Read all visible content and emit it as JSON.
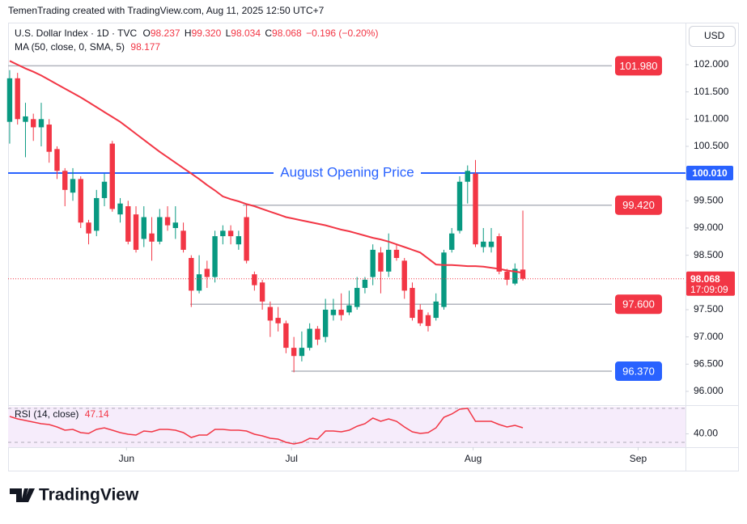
{
  "chart_data": {
    "type": "candlestick",
    "attribution": "TemenTrading created with TradingView.com, Aug 11, 2025 12:50 UTC+7",
    "symbol": "U.S. Dollar Index · 1D · TVC",
    "ohlc_header": [
      {
        "label": "O",
        "value": "98.237"
      },
      {
        "label": "H",
        "value": "99.320"
      },
      {
        "label": "L",
        "value": "98.034"
      },
      {
        "label": "C",
        "value": "98.068"
      }
    ],
    "change": "−0.196 (−0.20%)",
    "currency": "USD",
    "brand": "TradingView",
    "up_color": "#089981",
    "down_color": "#f23645",
    "categories": [
      null,
      null,
      null,
      null,
      null,
      null,
      null,
      null,
      null,
      null,
      null,
      null,
      null,
      null,
      null,
      null,
      null,
      null,
      null,
      null,
      null,
      null,
      null,
      null,
      null,
      null,
      null,
      null,
      null,
      null,
      null,
      null,
      null,
      null,
      null,
      null,
      null,
      null,
      null,
      null,
      null,
      null,
      null,
      null,
      null,
      null,
      null,
      null,
      null,
      null,
      null,
      null,
      null,
      null,
      null,
      null,
      null,
      null,
      null,
      null,
      null,
      null,
      null,
      null,
      null,
      null
    ],
    "open": [
      100.95,
      101.75,
      100.95,
      101.0,
      100.85,
      100.9,
      100.45,
      100.05,
      99.65,
      99.9,
      99.1,
      98.95,
      99.55,
      100.55,
      99.25,
      99.4,
      99.25,
      98.8,
      98.9,
      98.75,
      99.2,
      99.0,
      98.95,
      98.45,
      97.85,
      98.25,
      98.1,
      98.85,
      98.95,
      98.7,
      99.2,
      98.15,
      98.0,
      97.55,
      97.35,
      97.25,
      96.8,
      96.65,
      96.8,
      97.15,
      97.0,
      97.4,
      97.5,
      97.45,
      97.55,
      97.9,
      98.1,
      98.55,
      98.2,
      98.6,
      98.4,
      97.9,
      97.5,
      97.4,
      97.35,
      97.55,
      98.6,
      98.95,
      99.85,
      100.0,
      98.65,
      98.65,
      98.85,
      98.2,
      97.98,
      98.237
    ],
    "high": [
      101.9,
      101.85,
      101.3,
      101.1,
      101.3,
      101.0,
      100.5,
      100.1,
      100.1,
      99.95,
      99.15,
      99.7,
      100.0,
      100.6,
      99.55,
      99.5,
      99.4,
      99.4,
      99.2,
      99.35,
      99.4,
      99.4,
      99.1,
      98.5,
      98.5,
      98.4,
      98.95,
      99.05,
      99.05,
      98.95,
      99.45,
      98.2,
      98.05,
      97.65,
      97.55,
      97.3,
      97.0,
      97.1,
      97.25,
      97.2,
      97.7,
      97.7,
      97.8,
      97.85,
      98.1,
      98.1,
      98.7,
      98.65,
      98.9,
      98.7,
      98.45,
      98.0,
      97.6,
      97.45,
      97.8,
      98.6,
      99.0,
      99.95,
      100.15,
      100.25,
      99.0,
      99.0,
      98.9,
      98.25,
      98.35,
      99.32
    ],
    "low": [
      100.55,
      100.9,
      100.3,
      100.6,
      100.5,
      100.2,
      99.9,
      99.4,
      99.5,
      99.0,
      98.7,
      98.85,
      99.4,
      99.3,
      99.1,
      98.7,
      98.55,
      98.65,
      98.4,
      98.7,
      98.95,
      98.8,
      98.55,
      97.55,
      97.8,
      97.9,
      98.0,
      98.7,
      98.7,
      98.6,
      98.35,
      97.85,
      97.5,
      97.0,
      97.1,
      96.7,
      96.35,
      96.55,
      96.75,
      96.85,
      96.9,
      97.3,
      97.3,
      97.4,
      97.5,
      97.8,
      97.95,
      97.8,
      98.1,
      98.4,
      97.7,
      97.3,
      97.2,
      97.1,
      97.3,
      97.5,
      98.55,
      98.9,
      99.45,
      98.65,
      98.55,
      98.55,
      98.15,
      97.95,
      97.95,
      98.034
    ],
    "close": [
      101.75,
      101.0,
      101.05,
      100.85,
      101.0,
      100.4,
      100.05,
      99.7,
      99.9,
      99.1,
      98.9,
      99.55,
      99.85,
      99.35,
      99.45,
      98.75,
      98.6,
      99.2,
      98.75,
      99.2,
      99.05,
      99.1,
      98.6,
      97.85,
      98.15,
      98.1,
      98.85,
      98.95,
      98.85,
      98.85,
      98.4,
      97.95,
      97.65,
      97.3,
      97.25,
      96.8,
      96.65,
      96.8,
      97.15,
      96.95,
      97.5,
      97.5,
      97.4,
      97.58,
      97.9,
      98.05,
      98.6,
      98.2,
      98.6,
      98.45,
      97.85,
      97.35,
      97.25,
      97.2,
      97.65,
      98.55,
      98.9,
      99.85,
      100.05,
      98.7,
      98.75,
      98.75,
      98.2,
      98.05,
      98.25,
      98.068
    ],
    "countdown": "17:09:09",
    "ma": {
      "label": "MA (50, close, 0, SMA, 5)",
      "color": "#f23645",
      "values": [
        102.07,
        102.0,
        101.93,
        101.87,
        101.8,
        101.72,
        101.64,
        101.56,
        101.48,
        101.4,
        101.31,
        101.22,
        101.13,
        101.04,
        100.95,
        100.84,
        100.73,
        100.62,
        100.51,
        100.4,
        100.3,
        100.2,
        100.1,
        100.0,
        99.9,
        99.79,
        99.69,
        99.58,
        99.53,
        99.49,
        99.44,
        99.4,
        99.35,
        99.3,
        99.25,
        99.2,
        99.17,
        99.14,
        99.11,
        99.08,
        99.05,
        99.01,
        98.97,
        98.94,
        98.9,
        98.86,
        98.82,
        98.79,
        98.75,
        98.7,
        98.65,
        98.6,
        98.55,
        98.44,
        98.33,
        98.32,
        98.32,
        98.31,
        98.3,
        98.3,
        98.29,
        98.27,
        98.25,
        98.22,
        98.2,
        98.177
      ]
    },
    "xlim": [
      -0.2,
      85.6
    ],
    "xticks": [
      {
        "value": 14.8,
        "label": "Jun"
      },
      {
        "value": 35.7,
        "label": "Jul"
      },
      {
        "value": 58.7,
        "label": "Aug"
      },
      {
        "value": 79.6,
        "label": "Sep"
      }
    ],
    "ylim": [
      95.762,
      102.772
    ],
    "yticks": [
      {
        "value": 96,
        "label": "96.000"
      },
      {
        "value": 96.5,
        "label": "96.500"
      },
      {
        "value": 97,
        "label": "97.000"
      },
      {
        "value": 97.5,
        "label": "97.500"
      },
      {
        "value": 98,
        "label": "98.000"
      },
      {
        "value": 98.5,
        "label": "98.500"
      },
      {
        "value": 99,
        "label": "99.000"
      },
      {
        "value": 99.5,
        "label": "99.500"
      },
      {
        "value": 100,
        "label": "100.000"
      },
      {
        "value": 100.5,
        "label": "100.500"
      },
      {
        "value": 101,
        "label": "101.000"
      },
      {
        "value": 101.5,
        "label": "101.500"
      },
      {
        "value": 102,
        "label": "102.000"
      }
    ],
    "levels": [
      {
        "value": 101.98,
        "label": "101.980",
        "color": "#f23645"
      },
      {
        "value": 99.42,
        "label": "99.420",
        "color": "#f23645"
      },
      {
        "value": 97.6,
        "label": "97.600",
        "color": "#f23645"
      },
      {
        "value": 96.37,
        "label": "96.370",
        "color": "#2962ff"
      }
    ],
    "opening": {
      "value": 100.01,
      "label": "100.010",
      "text": "August Opening Price",
      "color": "#2962ff"
    },
    "rsi": {
      "label": "RSI (14, close)",
      "color": "#f23645",
      "ylim": [
        24.3,
        71.9
      ],
      "yticks": [
        {
          "value": 40,
          "label": "40.00"
        }
      ],
      "bands": [
        70,
        30
      ],
      "values": [
        60.5,
        57.6,
        55.7,
        53.8,
        51.9,
        51.0,
        48.1,
        44.3,
        45.2,
        41.4,
        40.5,
        45.2,
        47.1,
        44.3,
        41.4,
        39.5,
        38.6,
        43.3,
        42.4,
        45.2,
        45.2,
        44.3,
        41.4,
        35.7,
        38.6,
        38.6,
        45.2,
        45.2,
        44.3,
        44.3,
        43.3,
        39.5,
        37.6,
        34.8,
        33.8,
        30.0,
        28.1,
        30.0,
        34.8,
        33.8,
        43.3,
        43.3,
        42.4,
        44.3,
        49.0,
        51.9,
        58.6,
        54.8,
        57.6,
        54.8,
        48.1,
        42.4,
        40.5,
        41.4,
        47.1,
        59.5,
        63.3,
        69.0,
        70.0,
        54.8,
        54.8,
        54.8,
        51.0,
        48.1,
        50.0,
        47.14
      ]
    }
  }
}
